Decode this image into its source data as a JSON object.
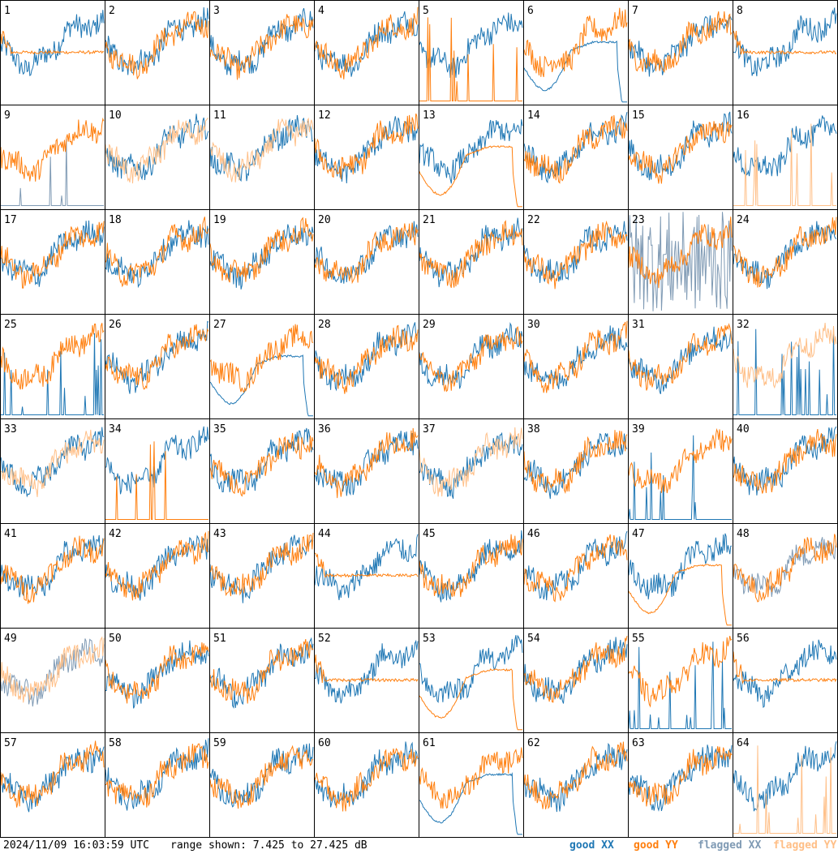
{
  "chart_data": {
    "type": "line",
    "description_grid": "8x8 small multiples, one per input",
    "panels": [
      {
        "id": "1",
        "xx": "good",
        "yy": "good",
        "shape": "dip-flat"
      },
      {
        "id": "2",
        "xx": "good",
        "yy": "good",
        "shape": "normal"
      },
      {
        "id": "3",
        "xx": "good",
        "yy": "good",
        "shape": "normal"
      },
      {
        "id": "4",
        "xx": "good",
        "yy": "good",
        "shape": "normal"
      },
      {
        "id": "5",
        "xx": "good",
        "yy": "good",
        "shape": "yy-spikes"
      },
      {
        "id": "6",
        "xx": "good",
        "yy": "good",
        "shape": "xx-smooth"
      },
      {
        "id": "7",
        "xx": "good",
        "yy": "good",
        "shape": "normal"
      },
      {
        "id": "8",
        "xx": "good",
        "yy": "good",
        "shape": "yy-flat"
      },
      {
        "id": "9",
        "xx": "flagged",
        "yy": "good",
        "shape": "xx-spikes"
      },
      {
        "id": "10",
        "xx": "good",
        "yy": "flagged",
        "shape": "normal"
      },
      {
        "id": "11",
        "xx": "good",
        "yy": "flagged",
        "shape": "normal"
      },
      {
        "id": "12",
        "xx": "good",
        "yy": "good",
        "shape": "normal"
      },
      {
        "id": "13",
        "xx": "good",
        "yy": "good",
        "shape": "yy-smooth"
      },
      {
        "id": "14",
        "xx": "good",
        "yy": "good",
        "shape": "normal"
      },
      {
        "id": "15",
        "xx": "good",
        "yy": "good",
        "shape": "normal"
      },
      {
        "id": "16",
        "xx": "good",
        "yy": "flagged",
        "shape": "yy-spikes"
      },
      {
        "id": "17",
        "xx": "good",
        "yy": "good",
        "shape": "normal"
      },
      {
        "id": "18",
        "xx": "good",
        "yy": "good",
        "shape": "normal"
      },
      {
        "id": "19",
        "xx": "good",
        "yy": "good",
        "shape": "normal"
      },
      {
        "id": "20",
        "xx": "good",
        "yy": "good",
        "shape": "normal"
      },
      {
        "id": "21",
        "xx": "good",
        "yy": "good",
        "shape": "normal"
      },
      {
        "id": "22",
        "xx": "good",
        "yy": "good",
        "shape": "normal"
      },
      {
        "id": "23",
        "xx": "flagged",
        "yy": "good",
        "shape": "xx-noisy"
      },
      {
        "id": "24",
        "xx": "good",
        "yy": "good",
        "shape": "normal"
      },
      {
        "id": "25",
        "xx": "good",
        "yy": "good",
        "shape": "xx-spikes"
      },
      {
        "id": "26",
        "xx": "good",
        "yy": "good",
        "shape": "normal"
      },
      {
        "id": "27",
        "xx": "good",
        "yy": "good",
        "shape": "xx-smooth"
      },
      {
        "id": "28",
        "xx": "good",
        "yy": "good",
        "shape": "normal"
      },
      {
        "id": "29",
        "xx": "good",
        "yy": "good",
        "shape": "normal"
      },
      {
        "id": "30",
        "xx": "good",
        "yy": "good",
        "shape": "normal"
      },
      {
        "id": "31",
        "xx": "good",
        "yy": "good",
        "shape": "normal"
      },
      {
        "id": "32",
        "xx": "good",
        "yy": "flagged",
        "shape": "xx-spikes"
      },
      {
        "id": "33",
        "xx": "good",
        "yy": "flagged",
        "shape": "normal"
      },
      {
        "id": "34",
        "xx": "good",
        "yy": "good",
        "shape": "yy-spikes"
      },
      {
        "id": "35",
        "xx": "good",
        "yy": "good",
        "shape": "normal"
      },
      {
        "id": "36",
        "xx": "good",
        "yy": "good",
        "shape": "normal"
      },
      {
        "id": "37",
        "xx": "good",
        "yy": "flagged",
        "shape": "normal"
      },
      {
        "id": "38",
        "xx": "good",
        "yy": "good",
        "shape": "normal"
      },
      {
        "id": "39",
        "xx": "good",
        "yy": "good",
        "shape": "xx-spikes"
      },
      {
        "id": "40",
        "xx": "good",
        "yy": "good",
        "shape": "normal"
      },
      {
        "id": "41",
        "xx": "good",
        "yy": "good",
        "shape": "normal"
      },
      {
        "id": "42",
        "xx": "good",
        "yy": "good",
        "shape": "normal"
      },
      {
        "id": "43",
        "xx": "good",
        "yy": "good",
        "shape": "normal"
      },
      {
        "id": "44",
        "xx": "good",
        "yy": "good",
        "shape": "yy-flat"
      },
      {
        "id": "45",
        "xx": "good",
        "yy": "good",
        "shape": "normal"
      },
      {
        "id": "46",
        "xx": "good",
        "yy": "good",
        "shape": "normal"
      },
      {
        "id": "47",
        "xx": "good",
        "yy": "good",
        "shape": "yy-smooth"
      },
      {
        "id": "48",
        "xx": "flagged",
        "yy": "good",
        "shape": "normal"
      },
      {
        "id": "49",
        "xx": "flagged",
        "yy": "flagged",
        "shape": "normal"
      },
      {
        "id": "50",
        "xx": "good",
        "yy": "good",
        "shape": "normal"
      },
      {
        "id": "51",
        "xx": "good",
        "yy": "good",
        "shape": "normal"
      },
      {
        "id": "52",
        "xx": "good",
        "yy": "good",
        "shape": "yy-flat"
      },
      {
        "id": "53",
        "xx": "good",
        "yy": "good",
        "shape": "yy-smooth"
      },
      {
        "id": "54",
        "xx": "good",
        "yy": "good",
        "shape": "normal"
      },
      {
        "id": "55",
        "xx": "good",
        "yy": "good",
        "shape": "xx-spikes"
      },
      {
        "id": "56",
        "xx": "good",
        "yy": "good",
        "shape": "yy-flat"
      },
      {
        "id": "57",
        "xx": "good",
        "yy": "good",
        "shape": "normal"
      },
      {
        "id": "58",
        "xx": "good",
        "yy": "good",
        "shape": "normal"
      },
      {
        "id": "59",
        "xx": "good",
        "yy": "good",
        "shape": "normal"
      },
      {
        "id": "60",
        "xx": "good",
        "yy": "good",
        "shape": "normal"
      },
      {
        "id": "61",
        "xx": "good",
        "yy": "good",
        "shape": "xx-smooth"
      },
      {
        "id": "62",
        "xx": "good",
        "yy": "good",
        "shape": "normal"
      },
      {
        "id": "63",
        "xx": "good",
        "yy": "good",
        "shape": "normal"
      },
      {
        "id": "64",
        "xx": "good",
        "yy": "flagged",
        "shape": "yy-spikes"
      }
    ],
    "ylim_db": [
      7.425,
      27.425
    ],
    "grid": false,
    "legend_placement": "bottom-right"
  },
  "footer": {
    "timestamp": "2024/11/09 16:03:59 UTC",
    "range": "range shown: 7.425 to 27.425 dB",
    "legend": [
      {
        "text_a": "good ",
        "text_b": "XX",
        "color": "#1f77b4"
      },
      {
        "text_a": "good ",
        "text_b": "YY",
        "color": "#ff7f0e"
      },
      {
        "text_a": "flagged ",
        "text_b": "XX",
        "color": "#7f9ab4"
      },
      {
        "text_a": "flagged ",
        "text_b": "YY",
        "color": "#ffbf87"
      }
    ]
  },
  "colors": {
    "good_xx": "#1f77b4",
    "good_yy": "#ff7f0e",
    "flagged_xx": "#7f9ab4",
    "flagged_yy": "#ffbf87"
  }
}
